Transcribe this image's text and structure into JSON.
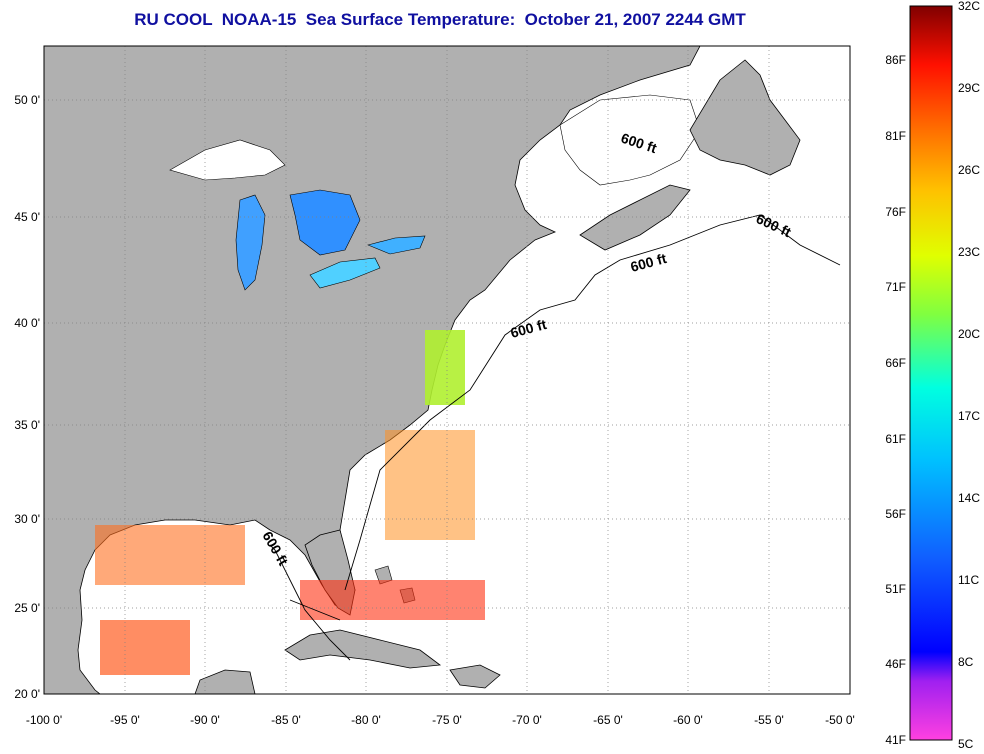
{
  "title": "RU COOL  NOAA-15  Sea Surface Temperature:  October 21, 2007 2244 GMT",
  "lon_ticks": [
    "-100 0'",
    "-95 0'",
    "-90 0'",
    "-85 0'",
    "-80 0'",
    "-75 0'",
    "-70 0'",
    "-65 0'",
    "-60 0'",
    "-55 0'",
    "-50 0'"
  ],
  "lat_ticks": [
    "50 0'",
    "45 0'",
    "40 0'",
    "35 0'",
    "30 0'",
    "25 0'",
    "20 0'"
  ],
  "isobath_labels": [
    "600 ft",
    "600 ft",
    "600 ft",
    "600 ft",
    "600 ft"
  ],
  "colorbar": {
    "celsius": [
      "32C",
      "29C",
      "26C",
      "23C",
      "20C",
      "17C",
      "14C",
      "11C",
      "8C",
      "5C"
    ],
    "fahrenheit": [
      "86F",
      "81F",
      "76F",
      "71F",
      "66F",
      "61F",
      "56F",
      "51F",
      "46F",
      "41F"
    ]
  },
  "colors": {
    "land": "#b0b0b0",
    "ocean": "#ffffff",
    "title": "#1010a0"
  }
}
